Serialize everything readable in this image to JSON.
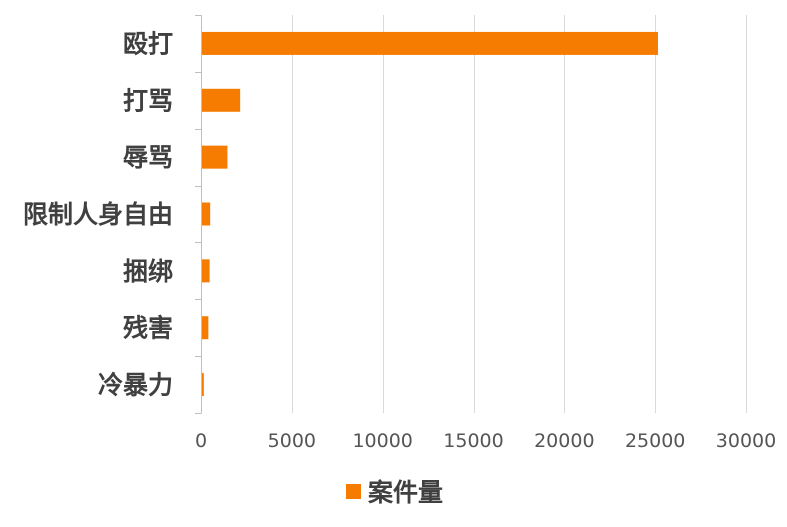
{
  "chart_data": {
    "type": "bar",
    "orientation": "horizontal",
    "categories": [
      "殴打",
      "打骂",
      "辱骂",
      "限制人身自由",
      "捆绑",
      "残害",
      "冷暴力"
    ],
    "series": [
      {
        "name": "案件量",
        "color": "#f57c00",
        "values": [
          25100,
          2100,
          1400,
          450,
          420,
          350,
          100
        ]
      }
    ],
    "xlim": [
      0,
      30000
    ],
    "xticks": [
      "0",
      "5000",
      "10000",
      "15000",
      "20000",
      "25000",
      "30000"
    ],
    "grid": "vertical",
    "legend_position": "bottom"
  }
}
